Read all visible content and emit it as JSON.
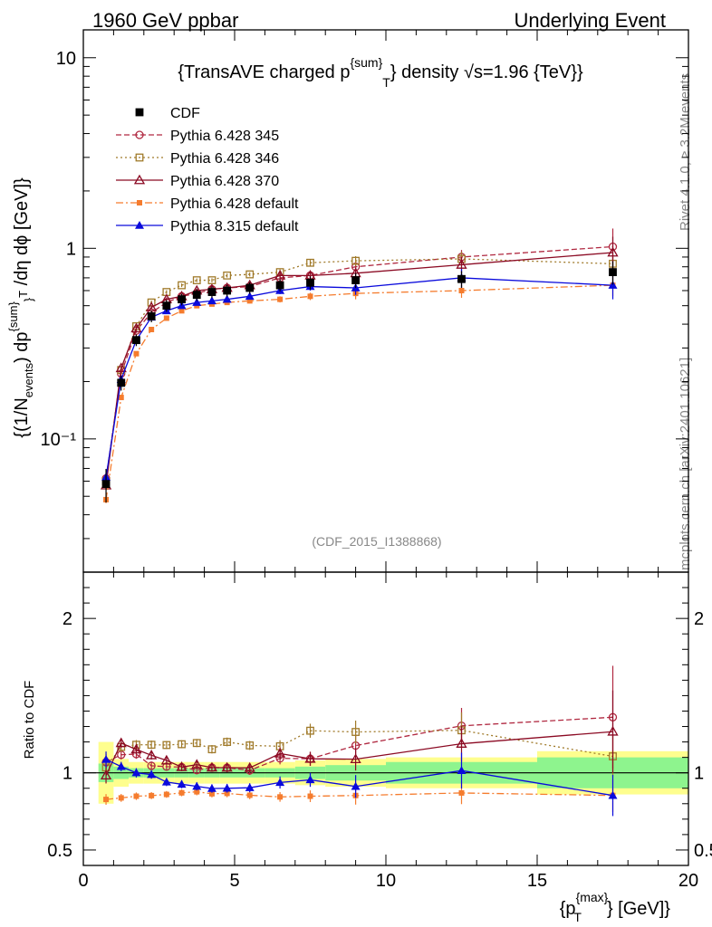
{
  "header": {
    "left": "1960 GeV ppbar",
    "right": "Underlying Event"
  },
  "chart_data": {
    "type": "scatter",
    "title": "{TransAVE charged p",
    "title_sup": "{sum}",
    "title_sub": "T",
    "title_tail": "} density √s=1.96 {TeV}}",
    "analysis_id": "(CDF_2015_I1388868)",
    "side_label_top": "Rivet 4.1.0, ≥ 3.2M events",
    "side_label_bottom": "mcplots.cern.ch [arXiv:2401.10621]",
    "ylabel_main": "{(1/N_events) dp^{sum}_T /dη dϕ [GeV]}",
    "ylabel_ratio": "Ratio to CDF",
    "xlabel_pre": "{p",
    "xlabel_sup": "{max}",
    "xlabel_sub": "T",
    "xlabel_post": "} [GeV]}",
    "x_range": [
      0,
      20
    ],
    "y_range_main": [
      0.02,
      14
    ],
    "y_scale_main": "log",
    "y_range_ratio": [
      0.4,
      2.3
    ],
    "x_ticks": [
      0,
      5,
      10,
      15,
      20
    ],
    "x_tick_labels": [
      "0",
      "5",
      "10",
      "15",
      "20"
    ],
    "y_ticks_main": [
      0.1,
      1,
      10
    ],
    "y_tick_labels_main": [
      "10⁻¹",
      "1",
      "10"
    ],
    "y_ticks_ratio": [
      0.5,
      1,
      2
    ],
    "y_tick_labels_ratio": [
      "0.5",
      "1",
      "2"
    ],
    "x": [
      0.75,
      1.25,
      1.75,
      2.25,
      2.75,
      3.25,
      3.75,
      4.25,
      4.75,
      5.5,
      6.5,
      7.5,
      9.0,
      12.5,
      17.5
    ],
    "band_edges": [
      0.5,
      1.0,
      1.5,
      2.0,
      2.5,
      3.0,
      3.5,
      4.0,
      4.5,
      5.0,
      6.0,
      7.0,
      8.0,
      10.0,
      15.0,
      20.0
    ],
    "data_series": {
      "name": "CDF",
      "color": "#000000",
      "values": [
        0.058,
        0.197,
        0.33,
        0.44,
        0.5,
        0.54,
        0.57,
        0.59,
        0.6,
        0.62,
        0.64,
        0.66,
        0.68,
        0.69,
        0.75
      ],
      "stat_rel": [
        0.06,
        0.04,
        0.03,
        0.03,
        0.03,
        0.03,
        0.03,
        0.03,
        0.03,
        0.03,
        0.03,
        0.04,
        0.05,
        0.07,
        0.1
      ],
      "tot_rel": [
        0.2,
        0.09,
        0.07,
        0.07,
        0.07,
        0.07,
        0.07,
        0.07,
        0.07,
        0.07,
        0.07,
        0.08,
        0.09,
        0.1,
        0.14
      ]
    },
    "series": [
      {
        "name": "Pythia 6.428 345",
        "color": "#b02840",
        "marker": "open-circle",
        "dash": "6,3",
        "values": [
          0.062,
          0.22,
          0.37,
          0.46,
          0.52,
          0.56,
          0.58,
          0.61,
          0.62,
          0.63,
          0.7,
          0.72,
          0.8,
          0.9,
          1.02
        ],
        "err": [
          0.003,
          0.006,
          0.01,
          0.012,
          0.013,
          0.014,
          0.015,
          0.016,
          0.017,
          0.018,
          0.025,
          0.03,
          0.05,
          0.08,
          0.25
        ]
      },
      {
        "name": "Pythia 6.428 346",
        "color": "#a07a2a",
        "marker": "open-square",
        "dash": "2,3",
        "values": [
          0.06,
          0.23,
          0.39,
          0.52,
          0.59,
          0.64,
          0.68,
          0.68,
          0.72,
          0.73,
          0.75,
          0.84,
          0.86,
          0.88,
          0.83
        ],
        "err": [
          0.003,
          0.006,
          0.01,
          0.012,
          0.013,
          0.014,
          0.015,
          0.016,
          0.017,
          0.018,
          0.025,
          0.03,
          0.05,
          0.08,
          0.1
        ]
      },
      {
        "name": "Pythia 6.428 370",
        "color": "#8b0a23",
        "marker": "open-triangle",
        "dash": "",
        "values": [
          0.057,
          0.235,
          0.38,
          0.49,
          0.54,
          0.56,
          0.6,
          0.61,
          0.62,
          0.64,
          0.72,
          0.72,
          0.74,
          0.82,
          0.95
        ],
        "err": [
          0.003,
          0.006,
          0.01,
          0.012,
          0.013,
          0.014,
          0.015,
          0.016,
          0.017,
          0.018,
          0.025,
          0.03,
          0.05,
          0.08,
          0.2
        ]
      },
      {
        "name": "Pythia 6.428 default",
        "color": "#f57c2e",
        "marker": "filled-square",
        "dash": "8,3,2,3",
        "values": [
          0.048,
          0.165,
          0.28,
          0.375,
          0.43,
          0.47,
          0.5,
          0.51,
          0.52,
          0.53,
          0.54,
          0.56,
          0.58,
          0.6,
          0.64
        ],
        "err": [
          0.002,
          0.005,
          0.008,
          0.01,
          0.011,
          0.012,
          0.013,
          0.014,
          0.015,
          0.016,
          0.02,
          0.025,
          0.04,
          0.05,
          0.08
        ]
      },
      {
        "name": "Pythia 8.315 default",
        "color": "#0a0adc",
        "marker": "filled-triangle",
        "dash": "",
        "values": [
          0.063,
          0.205,
          0.33,
          0.435,
          0.47,
          0.5,
          0.52,
          0.53,
          0.54,
          0.56,
          0.6,
          0.63,
          0.62,
          0.7,
          0.64
        ],
        "err": [
          0.003,
          0.006,
          0.01,
          0.012,
          0.013,
          0.014,
          0.015,
          0.016,
          0.017,
          0.018,
          0.025,
          0.03,
          0.05,
          0.08,
          0.1
        ]
      }
    ]
  }
}
